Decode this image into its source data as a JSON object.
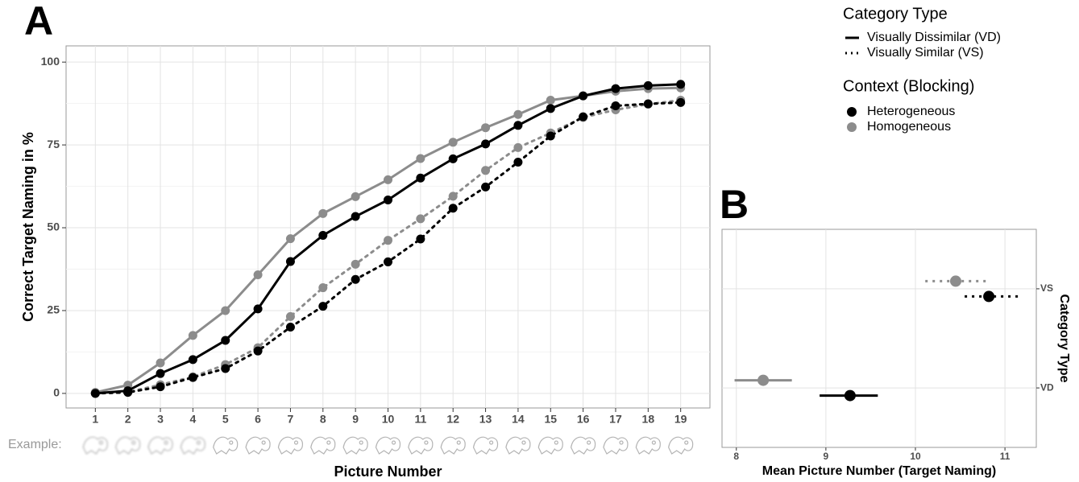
{
  "panels": [
    "A",
    "B"
  ],
  "example_label": "Example:",
  "chart_data": [
    {
      "type": "line",
      "xlabel": "Picture Number",
      "ylabel": "Correct Target Naming in %",
      "x": [
        1,
        2,
        3,
        4,
        5,
        6,
        7,
        8,
        9,
        10,
        11,
        12,
        13,
        14,
        15,
        16,
        17,
        18,
        19
      ],
      "xlim": [
        0.1,
        19.9
      ],
      "xticks": [
        1,
        2,
        3,
        4,
        5,
        6,
        7,
        8,
        9,
        10,
        11,
        12,
        13,
        14,
        15,
        16,
        17,
        18,
        19
      ],
      "ylim": [
        -4.4,
        104.9
      ],
      "yticks": [
        0,
        25,
        50,
        75,
        100
      ],
      "grid": true,
      "legend": {
        "groups": [
          {
            "title": "Category Type",
            "entries": [
              {
                "label": "Visually Dissimilar (VD)",
                "dash": "solid"
              },
              {
                "label": "Visually Similar (VS)",
                "dash": "dotted"
              }
            ]
          },
          {
            "title": "Context (Blocking)",
            "entries": [
              {
                "label": "Heterogeneous",
                "color": "#000000"
              },
              {
                "label": "Homogeneous",
                "color": "#8c8c8c"
              }
            ]
          }
        ]
      },
      "series": [
        {
          "color": "#8c8c8c",
          "dash": "dotted",
          "values": [
            0.2,
            0.4,
            2.6,
            5,
            8.7,
            13.8,
            23.2,
            31.9,
            39,
            46.2,
            52.7,
            59.5,
            67.3,
            74.2,
            78.6,
            83.3,
            85.6,
            87.3,
            88.5
          ]
        },
        {
          "color": "#000000",
          "dash": "dotted",
          "values": [
            0,
            0.3,
            2,
            4.8,
            7.5,
            12.8,
            20,
            26.3,
            34.4,
            39.7,
            46.6,
            55.9,
            62.3,
            69.8,
            77.7,
            83.5,
            86.8,
            87.4,
            87.8
          ]
        },
        {
          "color": "#8c8c8c",
          "dash": "solid",
          "values": [
            0.3,
            2.5,
            9.2,
            17.5,
            25,
            35.8,
            46.7,
            54.3,
            59.4,
            64.5,
            70.9,
            75.8,
            80.2,
            84.2,
            88.5,
            89.8,
            91.2,
            92,
            92.2
          ]
        },
        {
          "color": "#000000",
          "dash": "solid",
          "values": [
            0,
            0.8,
            6,
            10.2,
            16,
            25.5,
            39.8,
            47.7,
            53.4,
            58.4,
            65,
            70.8,
            75.3,
            80.9,
            86,
            89.8,
            92,
            92.9,
            93.3
          ]
        }
      ]
    },
    {
      "type": "dot-interval",
      "xlabel": "Mean Picture Number (Target Naming)",
      "ylabel": "Category Type",
      "categories": [
        "VD",
        "VS"
      ],
      "dash": [
        "solid",
        "dotted"
      ],
      "xlim": [
        7.84,
        11.35
      ],
      "xticks": [
        8,
        9,
        10,
        11
      ],
      "grid": true,
      "series": [
        {
          "color": "#8c8c8c",
          "values": [
            8.3,
            10.45
          ],
          "low": [
            7.98,
            10.11
          ],
          "high": [
            8.62,
            10.8
          ]
        },
        {
          "color": "#000000",
          "values": [
            9.27,
            10.82
          ],
          "low": [
            8.93,
            10.55
          ],
          "high": [
            9.58,
            11.17
          ]
        }
      ]
    }
  ]
}
